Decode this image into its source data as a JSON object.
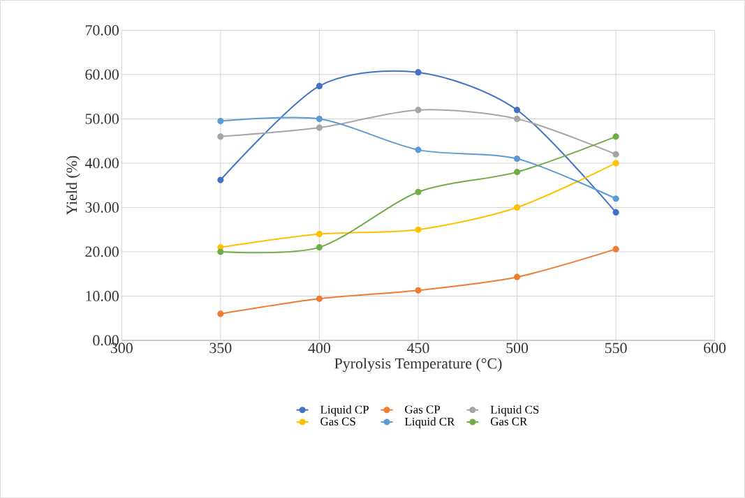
{
  "chart_data": {
    "type": "line",
    "xlabel": "Pyrolysis Temperature (°C)",
    "ylabel": "Yield (%)",
    "x": [
      350,
      400,
      450,
      500,
      550
    ],
    "series": [
      {
        "name": "Liquid CP",
        "color": "#4472c4",
        "values": [
          36.2,
          57.4,
          60.5,
          52.0,
          28.9
        ]
      },
      {
        "name": "Gas CP",
        "color": "#ed7d31",
        "values": [
          6.0,
          9.4,
          11.3,
          14.3,
          20.6
        ]
      },
      {
        "name": "Liquid CS",
        "color": "#a5a5a5",
        "values": [
          46,
          48,
          52,
          50,
          42
        ]
      },
      {
        "name": "Gas CS",
        "color": "#ffc000",
        "values": [
          21,
          24,
          25,
          30,
          40
        ]
      },
      {
        "name": "Liquid CR",
        "color": "#5b9bd5",
        "values": [
          49.5,
          50,
          43,
          41,
          32
        ]
      },
      {
        "name": "Gas CR",
        "color": "#70ad47",
        "values": [
          20,
          21,
          33.5,
          38,
          46
        ]
      }
    ],
    "xlim": [
      300,
      600
    ],
    "xticks": [
      300,
      350,
      400,
      450,
      500,
      550,
      600
    ],
    "ylim": [
      0,
      70
    ],
    "yticks": [
      {
        "value": 0,
        "label": "0.00"
      },
      {
        "value": 10,
        "label": "10.00"
      },
      {
        "value": 20,
        "label": "20.00"
      },
      {
        "value": 30,
        "label": "30.00"
      },
      {
        "value": 40,
        "label": "40.00"
      },
      {
        "value": 50,
        "label": "50.00"
      },
      {
        "value": 60,
        "label": "60.00"
      },
      {
        "value": 70,
        "label": "70.00"
      }
    ],
    "grid": true,
    "legend": "bottom",
    "marker": "circle",
    "line_style": "solid"
  }
}
